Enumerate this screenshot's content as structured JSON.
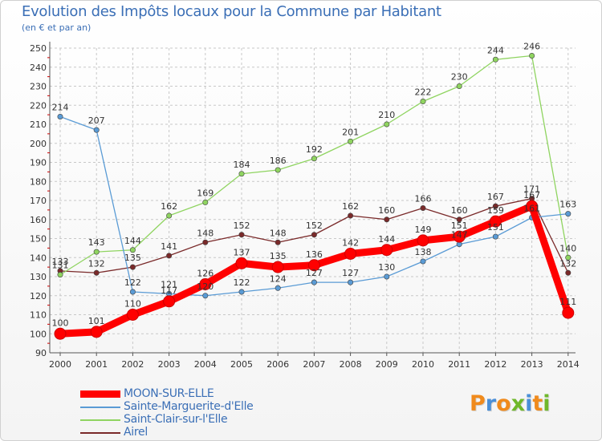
{
  "header": {
    "title": "Evolution des Impôts locaux pour la Commune par Habitant",
    "subtitle": "(en € et par an)"
  },
  "logo": {
    "text": "Proxiti",
    "colors": [
      "#f08a1c",
      "#4a8fd8",
      "#6fb82a"
    ]
  },
  "chart_data": {
    "type": "line",
    "title": "Evolution des Impôts locaux pour la Commune par Habitant",
    "ylabel": "(en € et par an)",
    "xlabel": "",
    "ylim": [
      90,
      250
    ],
    "yticks": [
      90,
      100,
      110,
      120,
      130,
      140,
      150,
      160,
      170,
      180,
      190,
      200,
      210,
      220,
      230,
      240,
      250
    ],
    "categories": [
      "2000",
      "2001",
      "2002",
      "2003",
      "2004",
      "2005",
      "2006",
      "2007",
      "2008",
      "2009",
      "2010",
      "2011",
      "2012",
      "2013",
      "2014"
    ],
    "grid": true,
    "legend_position": "bottom-left",
    "series": [
      {
        "name": "MOON-SUR-ELLE",
        "color": "#ff0000",
        "values": [
          100,
          101,
          110,
          117,
          126,
          137,
          135,
          136,
          142,
          144,
          149,
          151,
          159,
          167,
          111
        ],
        "labels": [
          "100",
          "101",
          "110",
          "117",
          "126",
          "137",
          "135",
          "136",
          "142",
          "144",
          "149",
          "151",
          "159",
          "167",
          "111"
        ]
      },
      {
        "name": "Sainte-Marguerite-d'Elle",
        "color": "#5a9bd5",
        "values": [
          214,
          207,
          122,
          121,
          120,
          122,
          124,
          127,
          127,
          130,
          138,
          147,
          151,
          161,
          163
        ],
        "labels": [
          "214",
          "207",
          "122",
          "121",
          "120",
          "122",
          "124",
          "127",
          "127",
          "130",
          "138",
          "147",
          "151",
          "161",
          "163"
        ]
      },
      {
        "name": "Saint-Clair-sur-l'Elle",
        "color": "#8fd460",
        "values": [
          131,
          143,
          144,
          162,
          169,
          184,
          186,
          192,
          201,
          210,
          222,
          230,
          244,
          246,
          140
        ],
        "labels": [
          "131",
          "143",
          "144",
          "162",
          "169",
          "184",
          "186",
          "192",
          "201",
          "210",
          "222",
          "230",
          "244",
          "246",
          "140"
        ]
      },
      {
        "name": "Airel",
        "color": "#7a2a2a",
        "values": [
          133,
          132,
          135,
          141,
          148,
          152,
          148,
          152,
          162,
          160,
          166,
          160,
          167,
          171,
          132
        ],
        "labels": [
          "133",
          "132",
          "135",
          "141",
          "148",
          "152",
          "148",
          "152",
          "162",
          "160",
          "166",
          "160",
          "167",
          "171",
          "132"
        ]
      }
    ]
  }
}
